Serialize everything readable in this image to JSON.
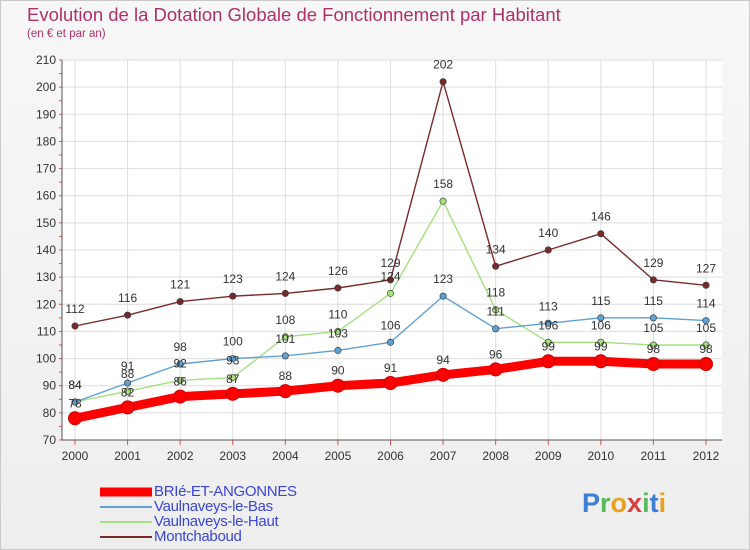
{
  "title": "Evolution de la Dotation Globale de Fonctionnement par Habitant",
  "subtitle": "(en € et par an)",
  "brand": {
    "letters": [
      "P",
      "r",
      "o",
      "x",
      "i",
      "t",
      "i"
    ],
    "colors": [
      "#3d7fd6",
      "#5cb85c",
      "#e8a020",
      "#d94040",
      "#5cb85c",
      "#3d7fd6",
      "#e8a020"
    ]
  },
  "chart_data": {
    "type": "line",
    "title": "Evolution de la Dotation Globale de Fonctionnement par Habitant",
    "ylabel": "(en € et par an)",
    "xlabel": "",
    "categories": [
      "2000",
      "2001",
      "2002",
      "2003",
      "2004",
      "2005",
      "2006",
      "2007",
      "2008",
      "2009",
      "2010",
      "2011",
      "2012"
    ],
    "ylim": [
      70,
      210
    ],
    "yticks": [
      70,
      80,
      90,
      100,
      110,
      120,
      130,
      140,
      150,
      160,
      170,
      180,
      190,
      200,
      210
    ],
    "grid": true,
    "legend_position": "bottom-left",
    "series": [
      {
        "name": "BRIé-ET-ANGONNES",
        "color": "#ff0000",
        "values": [
          78,
          82,
          86,
          87,
          88,
          90,
          91,
          94,
          96,
          99,
          99,
          98,
          98
        ]
      },
      {
        "name": "Vaulnaveys-le-Bas",
        "color": "#5fa0d2",
        "values": [
          84,
          91,
          98,
          100,
          101,
          103,
          106,
          123,
          111,
          113,
          115,
          115,
          114
        ]
      },
      {
        "name": "Vaulnaveys-le-Haut",
        "color": "#a4e07c",
        "values": [
          84,
          88,
          92,
          93,
          108,
          110,
          124,
          158,
          118,
          106,
          106,
          105,
          105
        ]
      },
      {
        "name": "Montchaboud",
        "color": "#7a2a2a",
        "values": [
          112,
          116,
          121,
          123,
          124,
          126,
          129,
          202,
          134,
          140,
          146,
          129,
          127
        ]
      }
    ]
  }
}
